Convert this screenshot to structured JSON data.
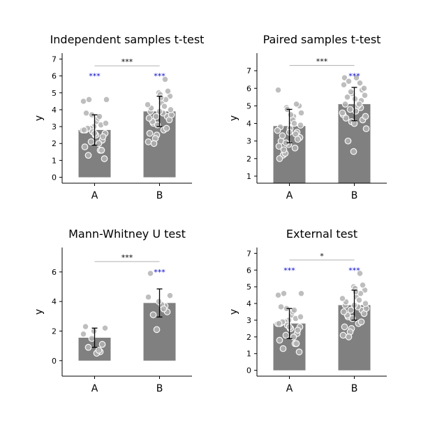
{
  "chart_data": [
    {
      "type": "bar",
      "title": "Independent samples t-test",
      "ylabel": "y",
      "categories": [
        "A",
        "B"
      ],
      "values": [
        2.8,
        3.9
      ],
      "error": [
        0.9,
        0.9
      ],
      "ylim": [
        -0.35,
        7.35
      ],
      "yticks": [
        0,
        1,
        2,
        3,
        4,
        5,
        6,
        7
      ],
      "points": [
        [
          2.8,
          1.6,
          3.7,
          2.6,
          1.3,
          3.3,
          4.5,
          2.2,
          3.0,
          2.0,
          3.8,
          1.1,
          2.9,
          2.5,
          4.6,
          1.8,
          3.1,
          2.7,
          2.4,
          4.6,
          3.5,
          2.8,
          1.6,
          2.1,
          3.2,
          2.9,
          2.5,
          2.8,
          3.6,
          2.6
        ],
        [
          3.9,
          5.8,
          2.5,
          4.8,
          3.2,
          4.4,
          2.1,
          3.6,
          5.0,
          2.8,
          4.1,
          3.4,
          2.3,
          4.9,
          3.7,
          2.6,
          4.6,
          3.1,
          5.1,
          2.0,
          3.8,
          4.3,
          2.9,
          3.6,
          4.0,
          3.3,
          4.7,
          3.5,
          4.2,
          3.9
        ]
      ],
      "comparison": {
        "label": "***",
        "y": 6.6
      },
      "group_labels": {
        "A": "***",
        "B": "***"
      },
      "group_label_y": 6.0
    },
    {
      "type": "bar",
      "title": "Paired samples t-test",
      "ylabel": "y",
      "categories": [
        "A",
        "B"
      ],
      "values": [
        3.85,
        5.1
      ],
      "error": [
        0.95,
        0.95
      ],
      "ylim": [
        0.6,
        8.0
      ],
      "yticks": [
        1,
        2,
        3,
        4,
        5,
        6,
        7
      ],
      "points": [
        [
          3.8,
          2.6,
          4.9,
          3.2,
          2.2,
          4.1,
          5.9,
          3.5,
          2.8,
          4.4,
          3.0,
          5.0,
          2.3,
          3.7,
          4.6,
          2.0,
          3.4,
          4.8,
          3.1,
          2.5,
          4.2,
          3.6,
          5.1,
          2.9,
          3.9,
          3.3,
          4.5,
          2.7,
          4.0,
          3.5
        ],
        [
          5.1,
          6.3,
          4.1,
          5.6,
          3.0,
          6.6,
          4.5,
          5.9,
          2.4,
          5.2,
          4.3,
          6.0,
          4.8,
          5.4,
          3.7,
          6.6,
          4.9,
          5.7,
          4.2,
          6.4,
          5.0,
          4.6,
          5.3,
          5.8,
          4.4,
          5.5,
          4.7,
          6.2,
          5.1,
          4.0
        ]
      ],
      "comparison": {
        "label": "***",
        "y": 7.3
      },
      "group_labels": {
        "A": "",
        "B": "***"
      },
      "group_label_y": 6.7
    },
    {
      "type": "bar",
      "title": "Mann-Whitney U test",
      "ylabel": "y",
      "categories": [
        "A",
        "B"
      ],
      "values": [
        1.55,
        3.9
      ],
      "error": [
        0.65,
        0.95
      ],
      "ylim": [
        -1.05,
        7.65
      ],
      "yticks": [
        0,
        2,
        4,
        6
      ],
      "points": [
        [
          2.3,
          0.6,
          1.5,
          2.2,
          0.9,
          0.5,
          1.8,
          1.1,
          2.0,
          0.7
        ],
        [
          5.9,
          3.7,
          2.1,
          4.4,
          3.1,
          3.8,
          4.3,
          3.3,
          4.0,
          3.5
        ]
      ],
      "comparison": {
        "label": "***",
        "y": 6.7
      },
      "group_labels": {
        "A": "",
        "B": "***"
      },
      "group_label_y": 6.0
    },
    {
      "type": "bar",
      "title": "External test",
      "ylabel": "y",
      "categories": [
        "A",
        "B"
      ],
      "values": [
        2.8,
        3.9
      ],
      "error": [
        0.9,
        0.9
      ],
      "ylim": [
        -0.35,
        7.35
      ],
      "yticks": [
        0,
        1,
        2,
        3,
        4,
        5,
        6,
        7
      ],
      "points": [
        [
          2.8,
          1.6,
          3.7,
          2.6,
          1.3,
          3.3,
          4.5,
          2.2,
          3.0,
          2.0,
          3.8,
          1.1,
          2.9,
          2.5,
          4.6,
          1.8,
          3.1,
          2.7,
          2.4,
          4.6,
          3.5,
          2.8,
          1.6,
          2.1,
          3.2,
          2.9,
          2.5,
          2.8,
          3.6,
          2.6
        ],
        [
          3.9,
          5.8,
          2.5,
          4.8,
          3.2,
          4.4,
          2.1,
          3.6,
          5.0,
          2.8,
          4.1,
          3.4,
          2.3,
          4.9,
          3.7,
          2.6,
          4.6,
          3.1,
          5.1,
          2.0,
          3.8,
          4.3,
          2.9,
          3.6,
          4.0,
          3.3,
          4.7,
          3.5,
          4.2,
          3.9
        ]
      ],
      "comparison": {
        "label": "*",
        "y": 6.6
      },
      "group_labels": {
        "A": "***",
        "B": "***"
      },
      "group_label_y": 6.0
    }
  ],
  "colors": {
    "bar": "#808080",
    "points": "#b3b3b3",
    "point_edge": "#ffffff",
    "error_bar": "#000000",
    "bracket": "#b0b0b0",
    "group_label": "#0000cc",
    "axis": "#000000"
  }
}
